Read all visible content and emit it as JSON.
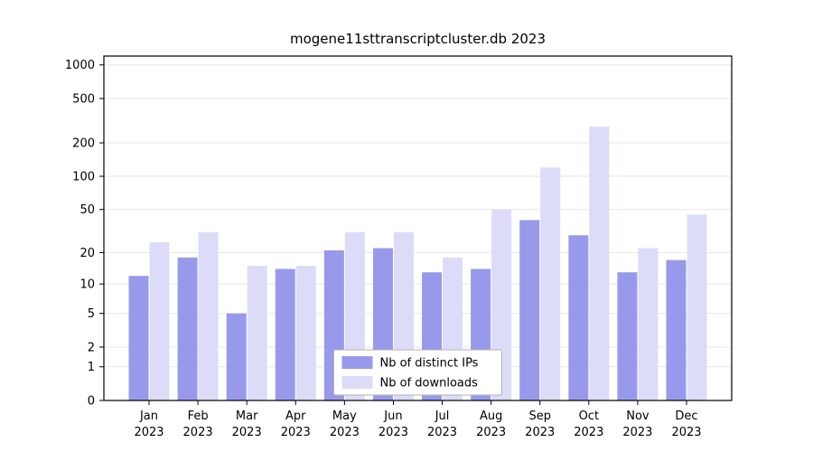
{
  "chart_data": {
    "type": "bar",
    "title": "mogene11sttranscriptcluster.db 2023",
    "categories": [
      "Jan 2023",
      "Feb 2023",
      "Mar 2023",
      "Apr 2023",
      "May 2023",
      "Jun 2023",
      "Jul 2023",
      "Aug 2023",
      "Sep 2023",
      "Oct 2023",
      "Nov 2023",
      "Dec 2023"
    ],
    "series": [
      {
        "name": "Nb of distinct IPs",
        "color": "#9999ec",
        "values": [
          12,
          18,
          5,
          14,
          21,
          22,
          13,
          14,
          40,
          29,
          13,
          17
        ]
      },
      {
        "name": "Nb of downloads",
        "color": "#dcdcf9",
        "values": [
          25,
          31,
          15,
          15,
          31,
          31,
          18,
          50,
          120,
          280,
          22,
          45
        ]
      }
    ],
    "yticks": [
      0,
      1,
      2,
      5,
      10,
      20,
      50,
      100,
      200,
      500,
      1000
    ],
    "scale": "log1p",
    "ylim": [
      0,
      1200
    ],
    "xlabel": "",
    "ylabel": "",
    "grid": "horizontal",
    "gridline_color": "#e7e7e7",
    "axis_color": "#000000",
    "legend_position": "bottom-center",
    "legend_border_color": "#b3b3b3",
    "legend_background": "#ffffff"
  }
}
